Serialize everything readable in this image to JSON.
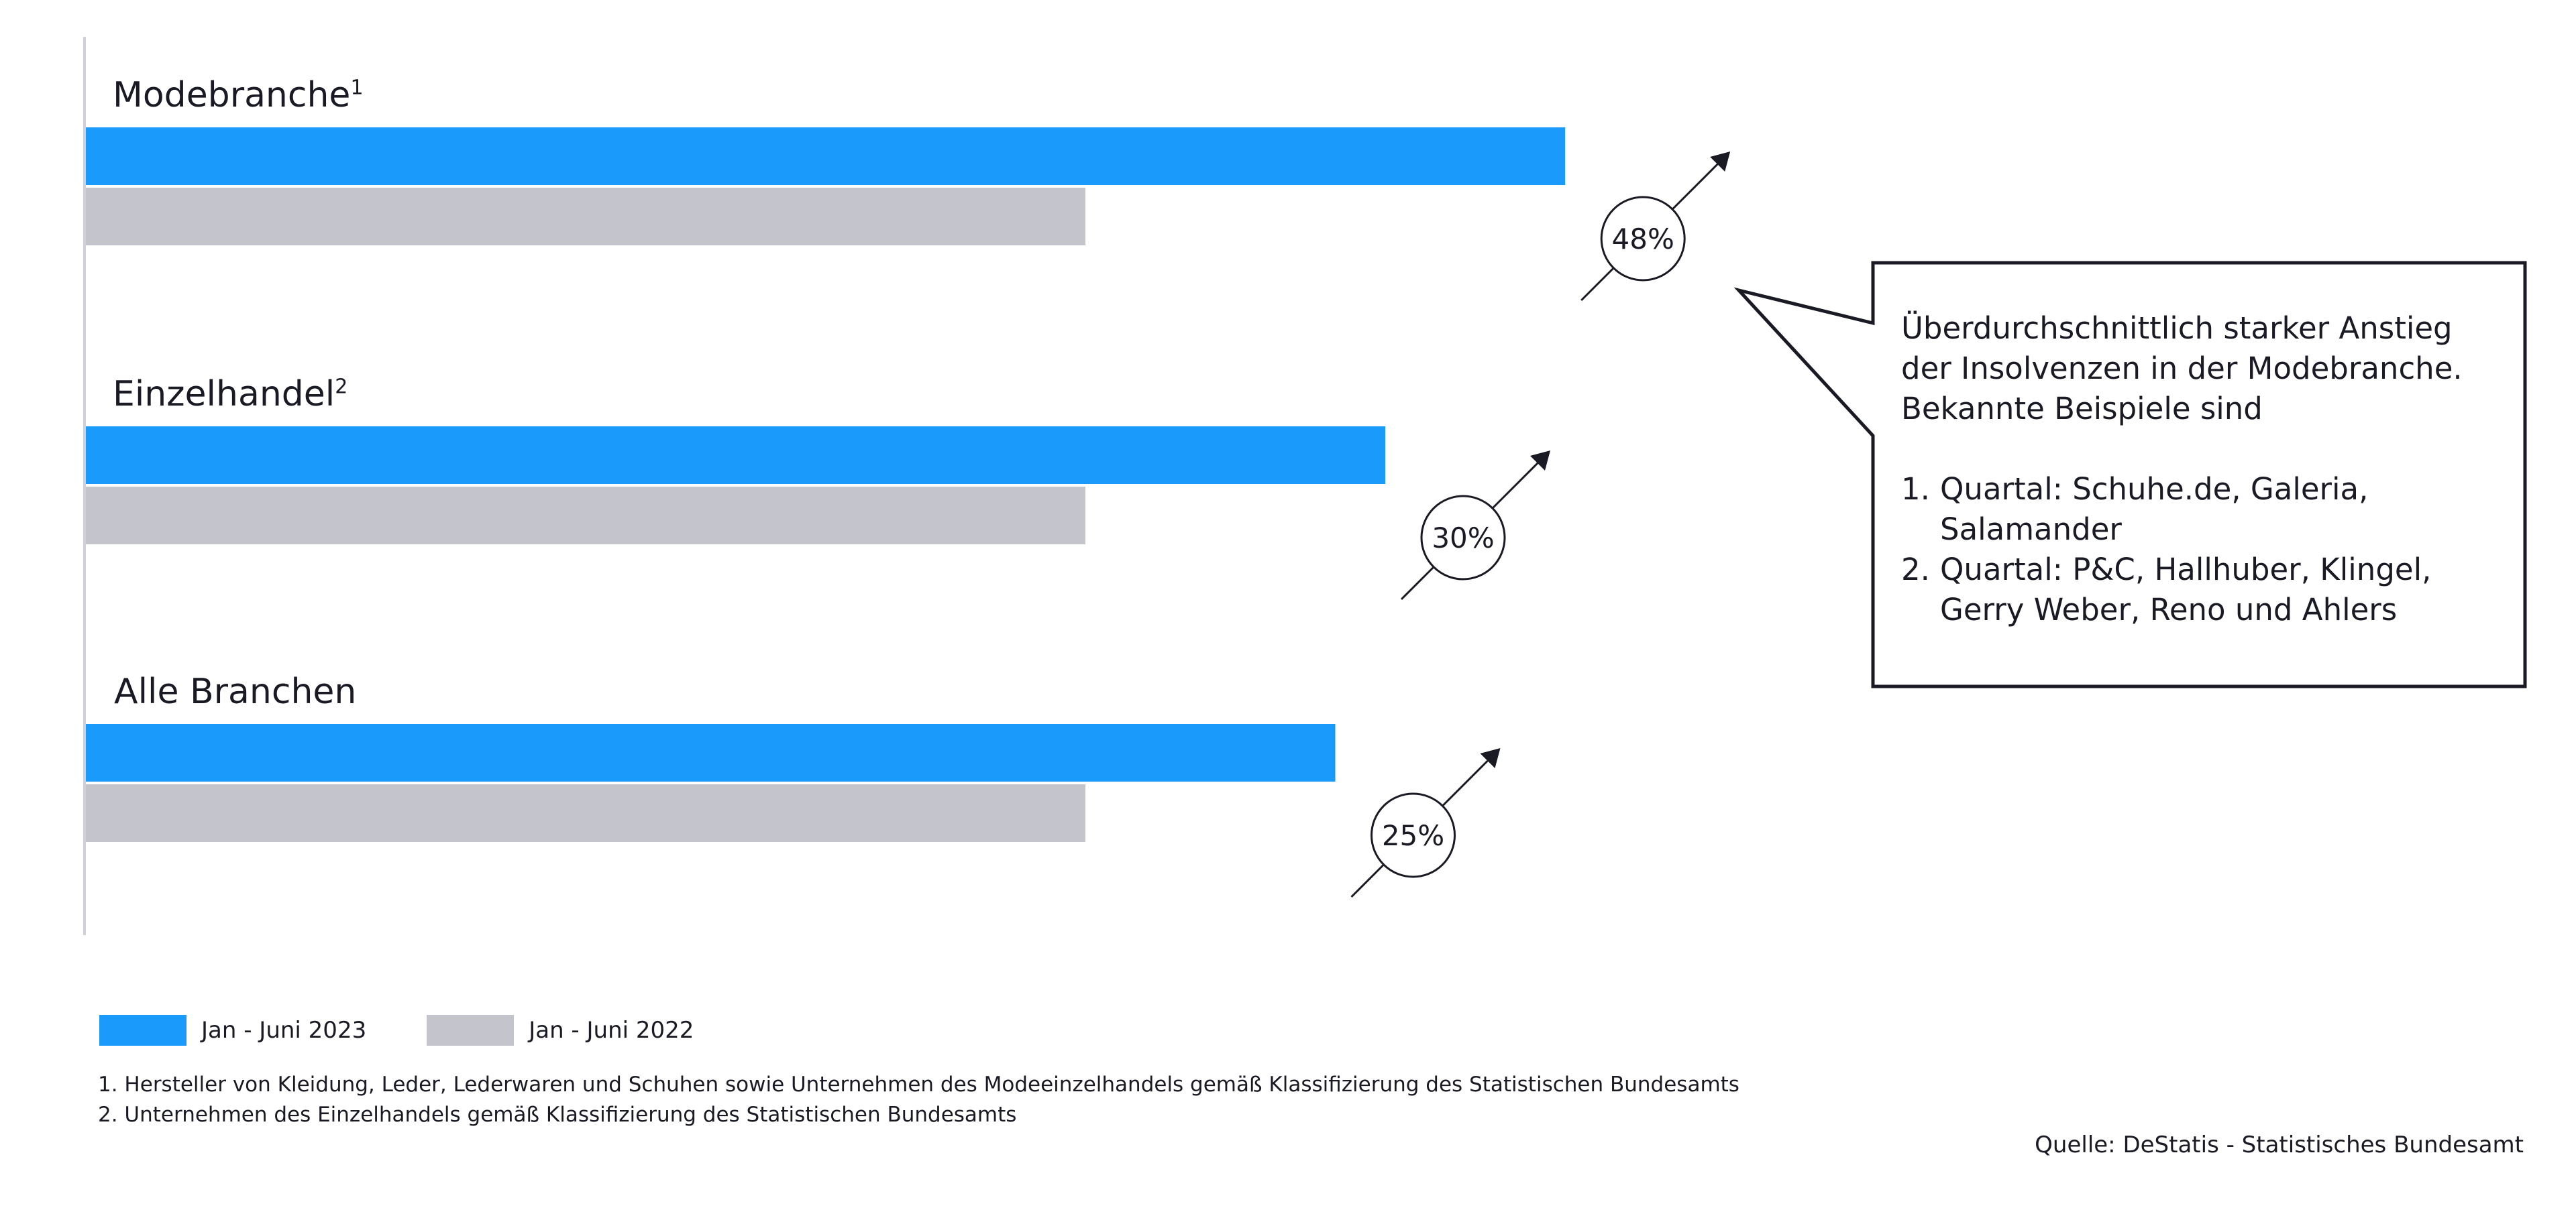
{
  "chart_data": {
    "type": "bar",
    "orientation": "horizontal",
    "categories": [
      "Modebranche",
      "Einzelhandel",
      "Alle Branchen"
    ],
    "category_footnote_marks": [
      "1",
      "2",
      ""
    ],
    "series": [
      {
        "name": "Jan - Juni 2023",
        "color": "#1a9afa",
        "values": [
          148,
          130,
          125
        ]
      },
      {
        "name": "Jan - Juni 2022",
        "color": "#c4c4cc",
        "values": [
          100,
          100,
          100
        ]
      }
    ],
    "change_labels": [
      "48%",
      "30%",
      "25%"
    ],
    "value_axis_visible": false,
    "grid": false,
    "legend_position": "bottom-left"
  },
  "callout": {
    "text": "Überdurchschnittlich starker Anstieg der Insolvenzen in der Modebranche. Bekannte Beispiele sind",
    "items": [
      {
        "num": "1.",
        "text": "Quartal: Schuhe.de, Galeria, Salamander"
      },
      {
        "num": "2.",
        "text": "Quartal: P&C, Hallhuber, Klingel, Gerry Weber, Reno und Ahlers"
      }
    ]
  },
  "legend": [
    {
      "label": "Jan - Juni 2023",
      "color": "#1a9afa"
    },
    {
      "label": "Jan - Juni 2022",
      "color": "#c4c4cc"
    }
  ],
  "footnotes": [
    "1. Hersteller von Kleidung, Leder, Lederwaren und Schuhen sowie Unternehmen des Modeeinzelhandels gemäß Klassifizierung des Statistischen Bundesamts",
    "2. Unternehmen des Einzelhandels gemäß Klassifizierung des Statistischen Bundesamts"
  ],
  "source": "Quelle: DeStatis - Statistisches Bundesamt"
}
